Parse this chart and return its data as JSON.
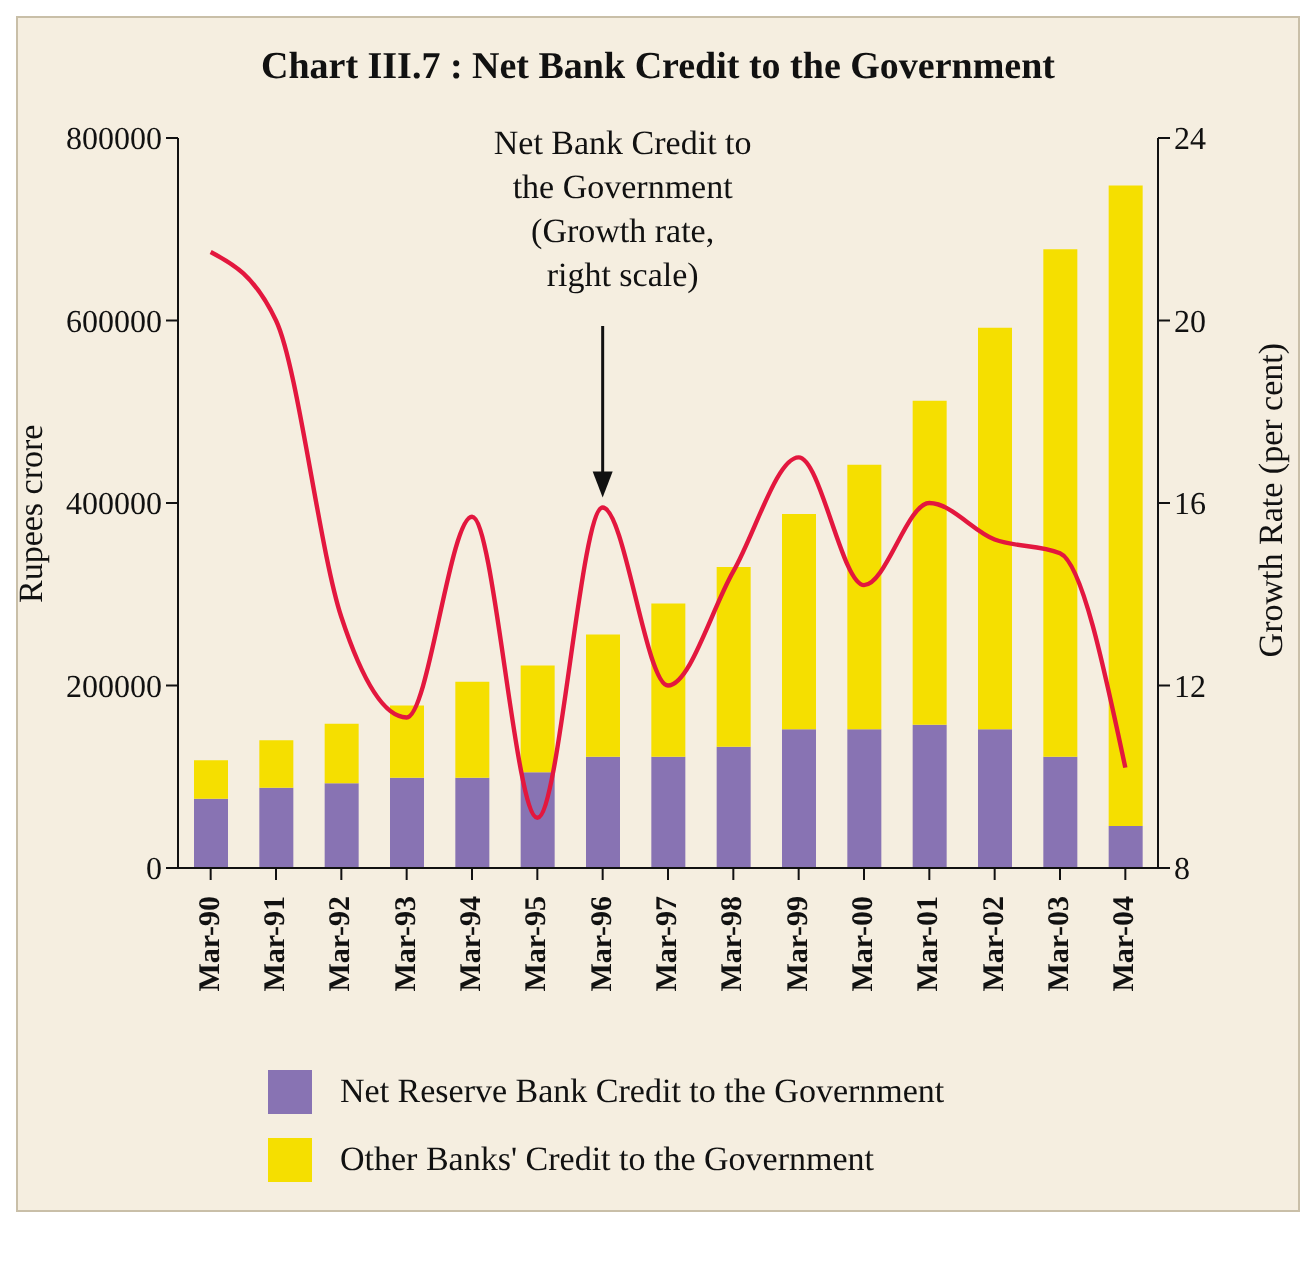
{
  "chart_data": {
    "type": "bar",
    "title": "Chart III.7 : Net Bank Credit to the Government",
    "ylabel": "Rupees crore",
    "y2label": "Growth Rate (per cent)",
    "categories": [
      "Mar-90",
      "Mar-91",
      "Mar-92",
      "Mar-93",
      "Mar-94",
      "Mar-95",
      "Mar-96",
      "Mar-97",
      "Mar-98",
      "Mar-99",
      "Mar-00",
      "Mar-01",
      "Mar-02",
      "Mar-03",
      "Mar-04"
    ],
    "series": [
      {
        "name": "Net Reserve Bank Credit to the Government",
        "color": "#8873b3",
        "values": [
          76000,
          88000,
          93000,
          99000,
          99000,
          105000,
          122000,
          122000,
          133000,
          152000,
          152000,
          157000,
          152000,
          122000,
          46000
        ]
      },
      {
        "name": "Other Banks' Credit to the Government",
        "color": "#f5df00",
        "values": [
          42000,
          52000,
          65000,
          79000,
          105000,
          117000,
          134000,
          168000,
          197000,
          236000,
          290000,
          355000,
          440000,
          556000,
          702000
        ]
      },
      {
        "type": "line",
        "axis": "y2",
        "color": "#e3173e",
        "values": [
          21.5,
          20.0,
          13.5,
          11.3,
          15.7,
          9.1,
          15.9,
          12.0,
          14.5,
          17.0,
          14.2,
          16.0,
          15.2,
          14.9,
          10.2
        ]
      }
    ],
    "stacked": true,
    "ylim": [
      0,
      800000
    ],
    "yticks": [
      0,
      200000,
      400000,
      600000,
      800000
    ],
    "y2lim": [
      8,
      24
    ],
    "y2ticks": [
      8,
      12,
      16,
      20,
      24
    ],
    "legend": "bottom",
    "annotations": [
      "Net Bank Credit to the Government (Growth rate, right scale)"
    ]
  }
}
